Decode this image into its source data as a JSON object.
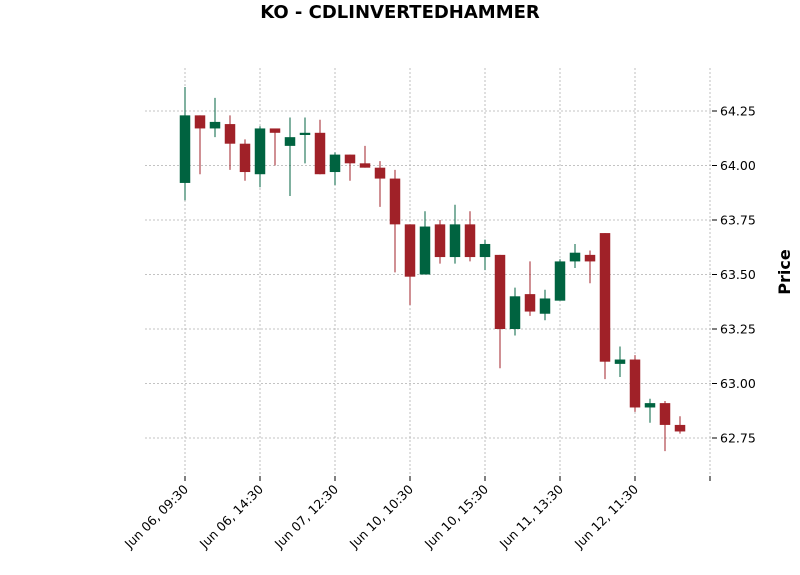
{
  "chart_data": {
    "type": "candlestick",
    "title": "KO - CDLINVERTEDHAMMER",
    "ylabel": "Price",
    "xlabel": "",
    "grid": true,
    "ylim": [
      62.6,
      64.44
    ],
    "y_ticks": [
      "62.75",
      "63.00",
      "63.25",
      "63.50",
      "63.75",
      "64.00",
      "64.25"
    ],
    "x_ticks": [
      {
        "index": 0,
        "label": "Jun 06, 09:30"
      },
      {
        "index": 5,
        "label": "Jun 06, 14:30"
      },
      {
        "index": 10,
        "label": "Jun 07, 12:30"
      },
      {
        "index": 15,
        "label": "Jun 10, 10:30"
      },
      {
        "index": 20,
        "label": "Jun 10, 15:30"
      },
      {
        "index": 25,
        "label": "Jun 11, 13:30"
      },
      {
        "index": 30,
        "label": "Jun 12, 11:30"
      },
      {
        "index": 35,
        "label": ""
      }
    ],
    "up_color": "#006340",
    "down_color": "#A02128",
    "candles": [
      {
        "o": 63.92,
        "h": 64.36,
        "l": 63.84,
        "c": 64.23
      },
      {
        "o": 64.23,
        "h": 64.23,
        "l": 63.96,
        "c": 64.17
      },
      {
        "o": 64.17,
        "h": 64.31,
        "l": 64.13,
        "c": 64.2
      },
      {
        "o": 64.19,
        "h": 64.23,
        "l": 63.98,
        "c": 64.1
      },
      {
        "o": 64.1,
        "h": 64.12,
        "l": 63.93,
        "c": 63.97
      },
      {
        "o": 63.96,
        "h": 64.18,
        "l": 63.9,
        "c": 64.17
      },
      {
        "o": 64.17,
        "h": 64.17,
        "l": 64.0,
        "c": 64.15
      },
      {
        "o": 64.09,
        "h": 64.22,
        "l": 63.86,
        "c": 64.13
      },
      {
        "o": 64.14,
        "h": 64.22,
        "l": 64.01,
        "c": 64.15
      },
      {
        "o": 64.15,
        "h": 64.21,
        "l": 63.96,
        "c": 63.96
      },
      {
        "o": 63.97,
        "h": 64.06,
        "l": 63.91,
        "c": 64.05
      },
      {
        "o": 64.05,
        "h": 64.05,
        "l": 63.93,
        "c": 64.01
      },
      {
        "o": 64.01,
        "h": 64.09,
        "l": 63.99,
        "c": 63.99
      },
      {
        "o": 63.99,
        "h": 64.02,
        "l": 63.81,
        "c": 63.94
      },
      {
        "o": 63.94,
        "h": 63.98,
        "l": 63.51,
        "c": 63.73
      },
      {
        "o": 63.73,
        "h": 63.73,
        "l": 63.36,
        "c": 63.49
      },
      {
        "o": 63.5,
        "h": 63.79,
        "l": 63.5,
        "c": 63.72
      },
      {
        "o": 63.73,
        "h": 63.75,
        "l": 63.55,
        "c": 63.58
      },
      {
        "o": 63.58,
        "h": 63.82,
        "l": 63.55,
        "c": 63.73
      },
      {
        "o": 63.73,
        "h": 63.79,
        "l": 63.56,
        "c": 63.58
      },
      {
        "o": 63.58,
        "h": 63.66,
        "l": 63.52,
        "c": 63.64
      },
      {
        "o": 63.59,
        "h": 63.59,
        "l": 63.07,
        "c": 63.25
      },
      {
        "o": 63.25,
        "h": 63.44,
        "l": 63.22,
        "c": 63.4
      },
      {
        "o": 63.41,
        "h": 63.56,
        "l": 63.31,
        "c": 63.33
      },
      {
        "o": 63.32,
        "h": 63.43,
        "l": 63.29,
        "c": 63.39
      },
      {
        "o": 63.38,
        "h": 63.57,
        "l": 63.38,
        "c": 63.56
      },
      {
        "o": 63.56,
        "h": 63.64,
        "l": 63.53,
        "c": 63.6
      },
      {
        "o": 63.59,
        "h": 63.61,
        "l": 63.46,
        "c": 63.56
      },
      {
        "o": 63.69,
        "h": 63.69,
        "l": 63.02,
        "c": 63.1
      },
      {
        "o": 63.09,
        "h": 63.17,
        "l": 63.03,
        "c": 63.11
      },
      {
        "o": 63.11,
        "h": 63.13,
        "l": 62.87,
        "c": 62.89
      },
      {
        "o": 62.89,
        "h": 62.93,
        "l": 62.82,
        "c": 62.91
      },
      {
        "o": 62.91,
        "h": 62.92,
        "l": 62.69,
        "c": 62.81
      },
      {
        "o": 62.81,
        "h": 62.85,
        "l": 62.77,
        "c": 62.78
      }
    ]
  }
}
